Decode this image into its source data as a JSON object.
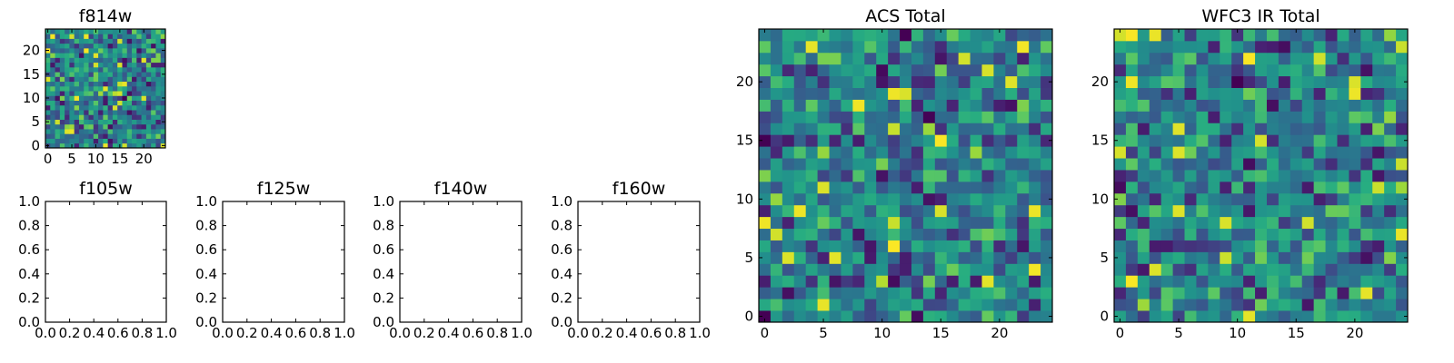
{
  "chart_data": [
    {
      "type": "heatmap",
      "title": "f814w",
      "xlabel": "",
      "ylabel": "",
      "xlim": [
        -0.5,
        24.5
      ],
      "ylim": [
        -0.5,
        24.5
      ],
      "xticks": [
        0,
        5,
        10,
        15,
        20
      ],
      "yticks": [
        0,
        5,
        10,
        15,
        20
      ],
      "grid": false,
      "colormap": "viridis",
      "shape": [
        25,
        25
      ],
      "seed": 814
    },
    {
      "type": "empty",
      "title": "f105w",
      "xlim": [
        0,
        1
      ],
      "ylim": [
        0,
        1
      ],
      "xticks": [
        "0.0",
        "0.2",
        "0.4",
        "0.6",
        "0.8",
        "1.0"
      ],
      "yticks": [
        "0.0",
        "0.2",
        "0.4",
        "0.6",
        "0.8",
        "1.0"
      ],
      "grid": false
    },
    {
      "type": "empty",
      "title": "f125w",
      "xlim": [
        0,
        1
      ],
      "ylim": [
        0,
        1
      ],
      "xticks": [
        "0.0",
        "0.2",
        "0.4",
        "0.6",
        "0.8",
        "1.0"
      ],
      "yticks": [
        "0.0",
        "0.2",
        "0.4",
        "0.6",
        "0.8",
        "1.0"
      ],
      "grid": false
    },
    {
      "type": "empty",
      "title": "f140w",
      "xlim": [
        0,
        1
      ],
      "ylim": [
        0,
        1
      ],
      "xticks": [
        "0.0",
        "0.2",
        "0.4",
        "0.6",
        "0.8",
        "1.0"
      ],
      "yticks": [
        "0.0",
        "0.2",
        "0.4",
        "0.6",
        "0.8",
        "1.0"
      ],
      "grid": false
    },
    {
      "type": "empty",
      "title": "f160w",
      "xlim": [
        0,
        1
      ],
      "ylim": [
        0,
        1
      ],
      "xticks": [
        "0.0",
        "0.2",
        "0.4",
        "0.6",
        "0.8",
        "1.0"
      ],
      "yticks": [
        "0.0",
        "0.2",
        "0.4",
        "0.6",
        "0.8",
        "1.0"
      ],
      "grid": false
    },
    {
      "type": "heatmap",
      "title": "ACS Total",
      "xlim": [
        -0.5,
        24.5
      ],
      "ylim": [
        -0.5,
        24.5
      ],
      "xticks": [
        0,
        5,
        10,
        15,
        20
      ],
      "yticks": [
        0,
        5,
        10,
        15,
        20
      ],
      "grid": false,
      "colormap": "viridis",
      "shape": [
        25,
        25
      ],
      "seed": 2026
    },
    {
      "type": "heatmap",
      "title": "WFC3 IR Total",
      "xlim": [
        -0.5,
        24.5
      ],
      "ylim": [
        -0.5,
        24.5
      ],
      "xticks": [
        0,
        5,
        10,
        15,
        20
      ],
      "yticks": [
        0,
        5,
        10,
        15,
        20
      ],
      "grid": false,
      "colormap": "viridis",
      "shape": [
        25,
        25
      ],
      "seed": 3160
    }
  ]
}
